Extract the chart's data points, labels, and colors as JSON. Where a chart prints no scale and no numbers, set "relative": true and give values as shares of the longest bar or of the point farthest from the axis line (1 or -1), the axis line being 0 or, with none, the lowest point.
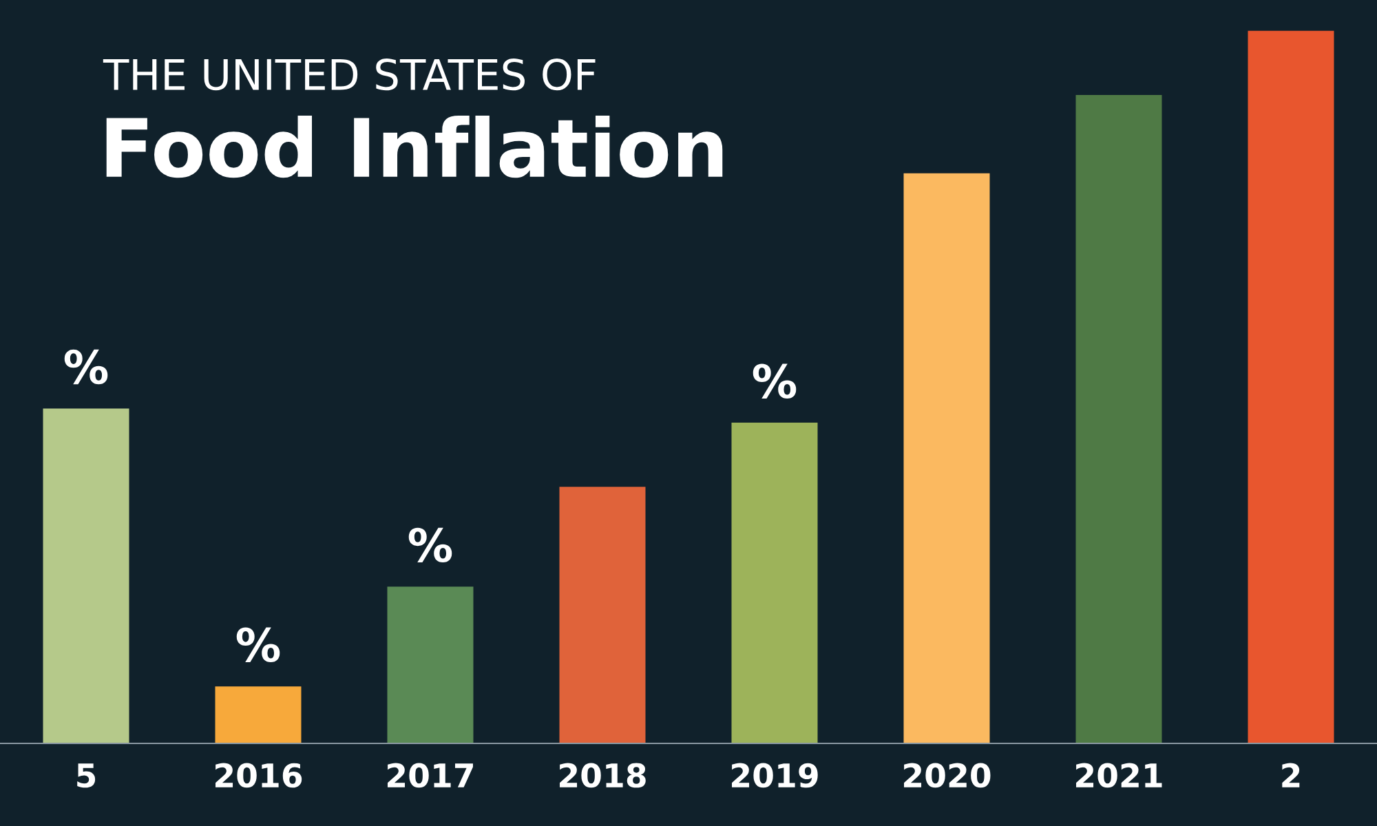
{
  "chart_data": {
    "type": "bar",
    "title": "THE UNITED STATES OF",
    "subtitle": "Food Inflation",
    "relative": true,
    "categories": [
      "5",
      "2016",
      "2017",
      "2018",
      "2019",
      "2020",
      "2021",
      "2"
    ],
    "values": [
      0.47,
      0.08,
      0.22,
      0.36,
      0.45,
      0.8,
      0.91,
      1
    ],
    "colors": [
      "#b5c98a",
      "#f7a93b",
      "#5a8a55",
      "#e0633a",
      "#9db35a",
      "#fbb960",
      "#4f7a45",
      "#e8562e"
    ],
    "annotations": [
      {
        "text": "%",
        "x": "5",
        "y": 0.47
      },
      {
        "text": "%",
        "x": "2016",
        "y": 0.08
      },
      {
        "text": "%",
        "x": "2017",
        "y": 0.22
      },
      {
        "text": "%",
        "x": "2019",
        "y": 0.45
      }
    ],
    "grid": false
  }
}
